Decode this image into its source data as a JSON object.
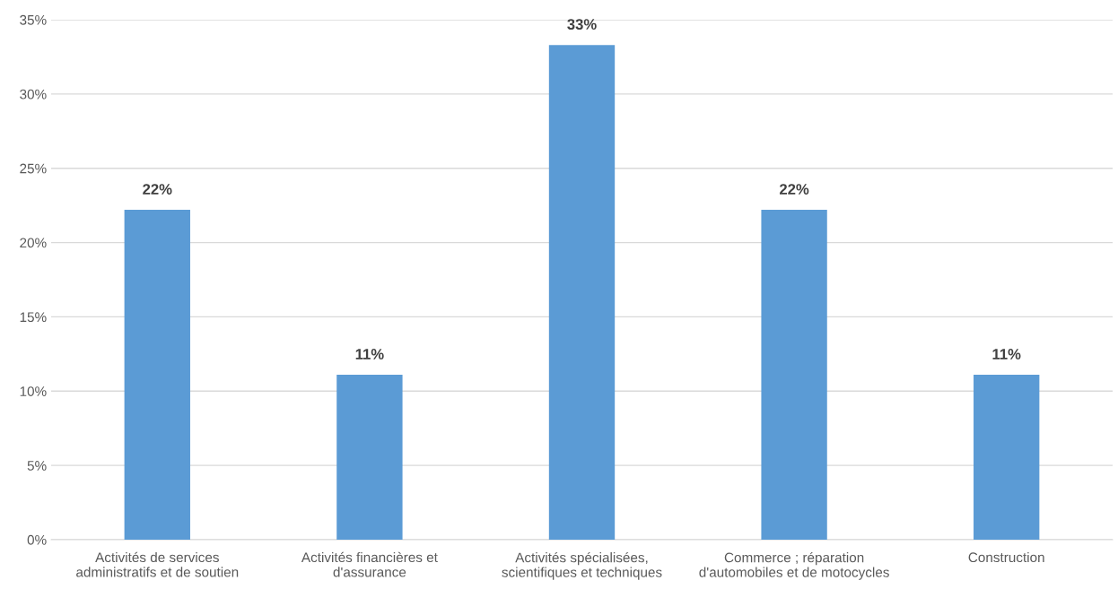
{
  "chart_data": {
    "type": "bar",
    "categories": [
      "Activités de services\nadministratifs et de soutien",
      "Activités financières et\nd'assurance",
      "Activités spécialisées,\nscientifiques et techniques",
      "Commerce ; réparation\nd'automobiles et de motocycles",
      "Construction"
    ],
    "values": [
      22.2,
      11.1,
      33.3,
      22.2,
      11.1
    ],
    "value_labels": [
      "22%",
      "11%",
      "33%",
      "22%",
      "11%"
    ],
    "color": "#5b9bd5",
    "ylim": [
      0,
      35
    ],
    "yticks": [
      {
        "value": 0,
        "label": "0%"
      },
      {
        "value": 5,
        "label": "5%"
      },
      {
        "value": 10,
        "label": "10%"
      },
      {
        "value": 15,
        "label": "15%"
      },
      {
        "value": 20,
        "label": "20%"
      },
      {
        "value": 25,
        "label": "25%"
      },
      {
        "value": 30,
        "label": "30%"
      },
      {
        "value": 35,
        "label": "35%"
      }
    ],
    "grid": "y",
    "legend": false
  }
}
